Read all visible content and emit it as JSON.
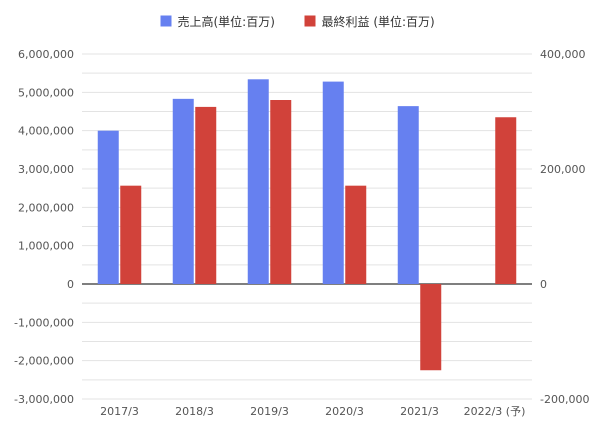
{
  "chart_data": {
    "type": "bar",
    "categories": [
      "2017/3",
      "2018/3",
      "2019/3",
      "2020/3",
      "2021/3",
      "2022/3 (予)"
    ],
    "series": [
      {
        "name": "売上高(単位:百万)",
        "axis": "left",
        "color": "#6680f0",
        "values": [
          4000000,
          4830000,
          5340000,
          5280000,
          4640000,
          null
        ]
      },
      {
        "name": "最終利益 (単位:百万)",
        "axis": "right",
        "color": "#d1423a",
        "values": [
          171000,
          308000,
          320000,
          171000,
          -150000,
          290000
        ]
      }
    ],
    "y_left": {
      "range": [
        -3000000,
        6000000
      ],
      "ticks": [
        -3000000,
        -2000000,
        -1000000,
        0,
        1000000,
        2000000,
        3000000,
        4000000,
        5000000,
        6000000
      ],
      "tick_labels": [
        "-3,000,000",
        "-2,000,000",
        "-1,000,000",
        "0",
        "1,000,000",
        "2,000,000",
        "3,000,000",
        "4,000,000",
        "5,000,000",
        "6,000,000"
      ]
    },
    "y_right": {
      "range": [
        -200000,
        400000
      ],
      "ticks": [
        -200000,
        0,
        200000,
        400000
      ],
      "tick_labels": [
        "-200,000",
        "0",
        "200,000",
        "400,000"
      ]
    },
    "grid": true,
    "legend_position": "top-center",
    "title": "",
    "xlabel": "",
    "ylabel": ""
  }
}
